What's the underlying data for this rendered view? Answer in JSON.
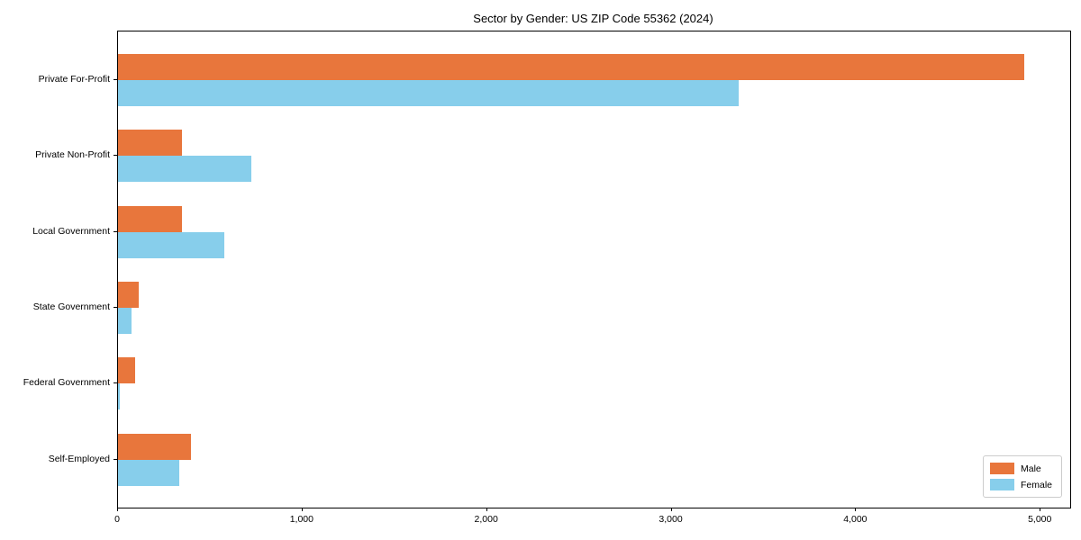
{
  "title": "Sector by Gender: US ZIP Code 55362 (2024)",
  "colors": {
    "male": "#e8763c",
    "female": "#87ceeb",
    "axis": "#000000",
    "legend_border": "#cccccc",
    "background": "#ffffff"
  },
  "chart_data": {
    "type": "bar",
    "orientation": "horizontal",
    "title": "Sector by Gender: US ZIP Code 55362 (2024)",
    "categories": [
      "Private For-Profit",
      "Private Non-Profit",
      "Local Government",
      "State Government",
      "Federal Government",
      "Self-Employed"
    ],
    "series": [
      {
        "name": "Male",
        "color": "#e8763c",
        "values": [
          4910,
          347,
          347,
          114,
          93,
          394
        ]
      },
      {
        "name": "Female",
        "color": "#87ceeb",
        "values": [
          3363,
          722,
          578,
          72,
          12,
          334
        ]
      }
    ],
    "xlabel": "",
    "ylabel": "",
    "xlim": [
      0,
      5160
    ],
    "xticks": [
      {
        "value": 0,
        "label": "0"
      },
      {
        "value": 1000,
        "label": "1,000"
      },
      {
        "value": 2000,
        "label": "2,000"
      },
      {
        "value": 3000,
        "label": "3,000"
      },
      {
        "value": 4000,
        "label": "4,000"
      },
      {
        "value": 5000,
        "label": "5,000"
      }
    ],
    "grid": false,
    "legend_position": "lower right"
  }
}
